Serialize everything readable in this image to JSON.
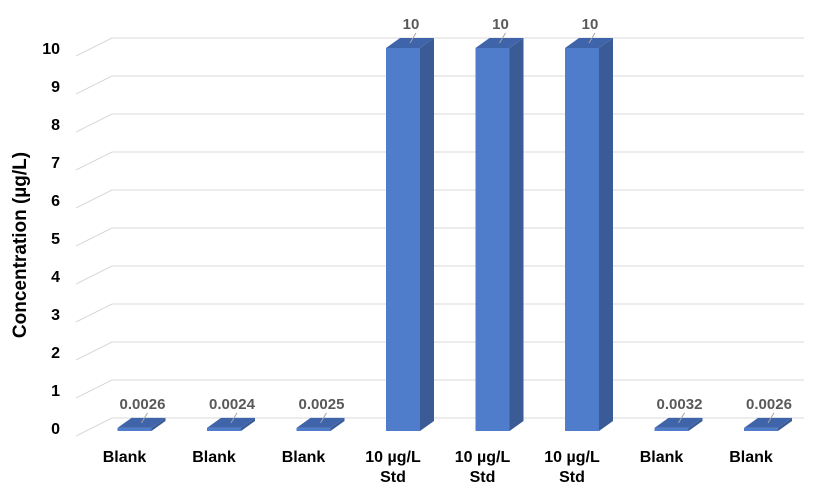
{
  "chart_data": {
    "type": "bar",
    "style": "3d-column",
    "title": "",
    "xlabel": "",
    "ylabel": "Concentration (µg/L)",
    "ylim": [
      0,
      10
    ],
    "yticks": [
      "0",
      "1",
      "2",
      "3",
      "4",
      "5",
      "6",
      "7",
      "8",
      "9",
      "10"
    ],
    "grid": true,
    "legend": "none",
    "categories": [
      [
        "Blank"
      ],
      [
        "Blank"
      ],
      [
        "Blank"
      ],
      [
        "10 µg/L",
        "Std"
      ],
      [
        "10 µg/L",
        "Std"
      ],
      [
        "10 µg/L",
        "Std"
      ],
      [
        "Blank"
      ],
      [
        "Blank"
      ]
    ],
    "series": [
      {
        "values": [
          0.0026,
          0.0024,
          0.0025,
          10,
          10,
          10,
          0.0032,
          0.0026
        ],
        "labels": [
          "0.0026",
          "0.0024",
          "0.0025",
          "10",
          "10",
          "10",
          "0.0032",
          "0.0026"
        ]
      }
    ],
    "colors": {
      "bar_front": "#4f7ccb",
      "bar_side": "#3a5b96",
      "bar_top": "#3f64aa",
      "grid": "#d9d9d9",
      "text": "#000000",
      "data_label": "#595959"
    }
  }
}
